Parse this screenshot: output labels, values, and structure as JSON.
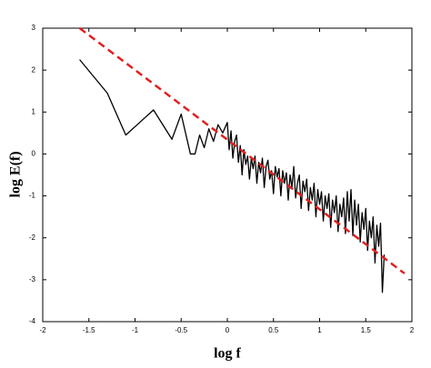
{
  "chart_data": {
    "type": "line",
    "xlabel": "log f",
    "ylabel": "log E(f)",
    "xlim": [
      -2,
      2
    ],
    "ylim": [
      -4,
      3
    ],
    "xticks": [
      -2,
      -1.5,
      -1,
      -0.5,
      0,
      0.5,
      1,
      1.5,
      2
    ],
    "yticks": [
      3,
      2,
      1,
      0,
      -1,
      -2,
      -3,
      -4
    ],
    "grid": false,
    "series": [
      {
        "color": "#000000",
        "dash": false,
        "x": [
          -1.6,
          -1.3,
          -1.1,
          -0.95,
          -0.8,
          -0.7,
          -0.6,
          -0.5,
          -0.4,
          -0.35,
          -0.3,
          -0.25,
          -0.2,
          -0.15,
          -0.1,
          -0.05,
          0,
          0.02,
          0.04,
          0.06,
          0.08,
          0.1,
          0.12,
          0.14,
          0.16,
          0.18,
          0.2,
          0.22,
          0.24,
          0.26,
          0.28,
          0.3,
          0.32,
          0.34,
          0.36,
          0.38,
          0.4,
          0.42,
          0.44,
          0.46,
          0.48,
          0.5,
          0.52,
          0.54,
          0.56,
          0.58,
          0.6,
          0.62,
          0.64,
          0.66,
          0.68,
          0.7,
          0.72,
          0.74,
          0.76,
          0.78,
          0.8,
          0.82,
          0.84,
          0.86,
          0.88,
          0.9,
          0.92,
          0.94,
          0.96,
          0.98,
          1.0,
          1.02,
          1.04,
          1.06,
          1.08,
          1.1,
          1.12,
          1.14,
          1.16,
          1.18,
          1.2,
          1.22,
          1.24,
          1.26,
          1.28,
          1.3,
          1.32,
          1.34,
          1.36,
          1.38,
          1.4,
          1.42,
          1.44,
          1.46,
          1.48,
          1.5,
          1.52,
          1.54,
          1.56,
          1.58,
          1.6,
          1.62,
          1.64,
          1.66,
          1.68,
          1.7
        ],
        "values": [
          2.25,
          1.45,
          0.45,
          0.75,
          1.05,
          0.7,
          0.35,
          0.95,
          0.0,
          0.0,
          0.45,
          0.15,
          0.6,
          0.3,
          0.7,
          0.5,
          0.75,
          0.1,
          0.55,
          -0.1,
          0.3,
          0.45,
          -0.2,
          0.2,
          -0.5,
          0.1,
          -0.25,
          -0.05,
          -0.6,
          -0.1,
          -0.35,
          -0.05,
          -0.7,
          -0.2,
          -0.45,
          -0.1,
          -0.8,
          -0.3,
          -0.15,
          -0.6,
          -0.4,
          -0.95,
          -0.3,
          -0.55,
          -0.35,
          -1.0,
          -0.4,
          -0.7,
          -0.45,
          -1.1,
          -0.5,
          -0.8,
          -0.3,
          -1.05,
          -0.7,
          -0.5,
          -1.3,
          -0.65,
          -0.9,
          -0.6,
          -1.35,
          -0.8,
          -1.1,
          -0.7,
          -1.5,
          -0.85,
          -1.2,
          -0.9,
          -1.6,
          -1.0,
          -1.3,
          -0.95,
          -1.75,
          -1.1,
          -1.4,
          -1.0,
          -1.85,
          -1.2,
          -1.5,
          -1.05,
          -1.9,
          -0.9,
          -1.6,
          -0.85,
          -1.95,
          -1.1,
          -1.7,
          -1.2,
          -2.1,
          -1.4,
          -1.8,
          -1.3,
          -2.3,
          -1.6,
          -2.0,
          -1.5,
          -2.6,
          -1.7,
          -2.2,
          -1.65,
          -3.3,
          -2.4
        ]
      },
      {
        "color": "#e02020",
        "dash": true,
        "x": [
          -1.6,
          1.92
        ],
        "values": [
          3.0,
          -2.85
        ]
      }
    ]
  }
}
